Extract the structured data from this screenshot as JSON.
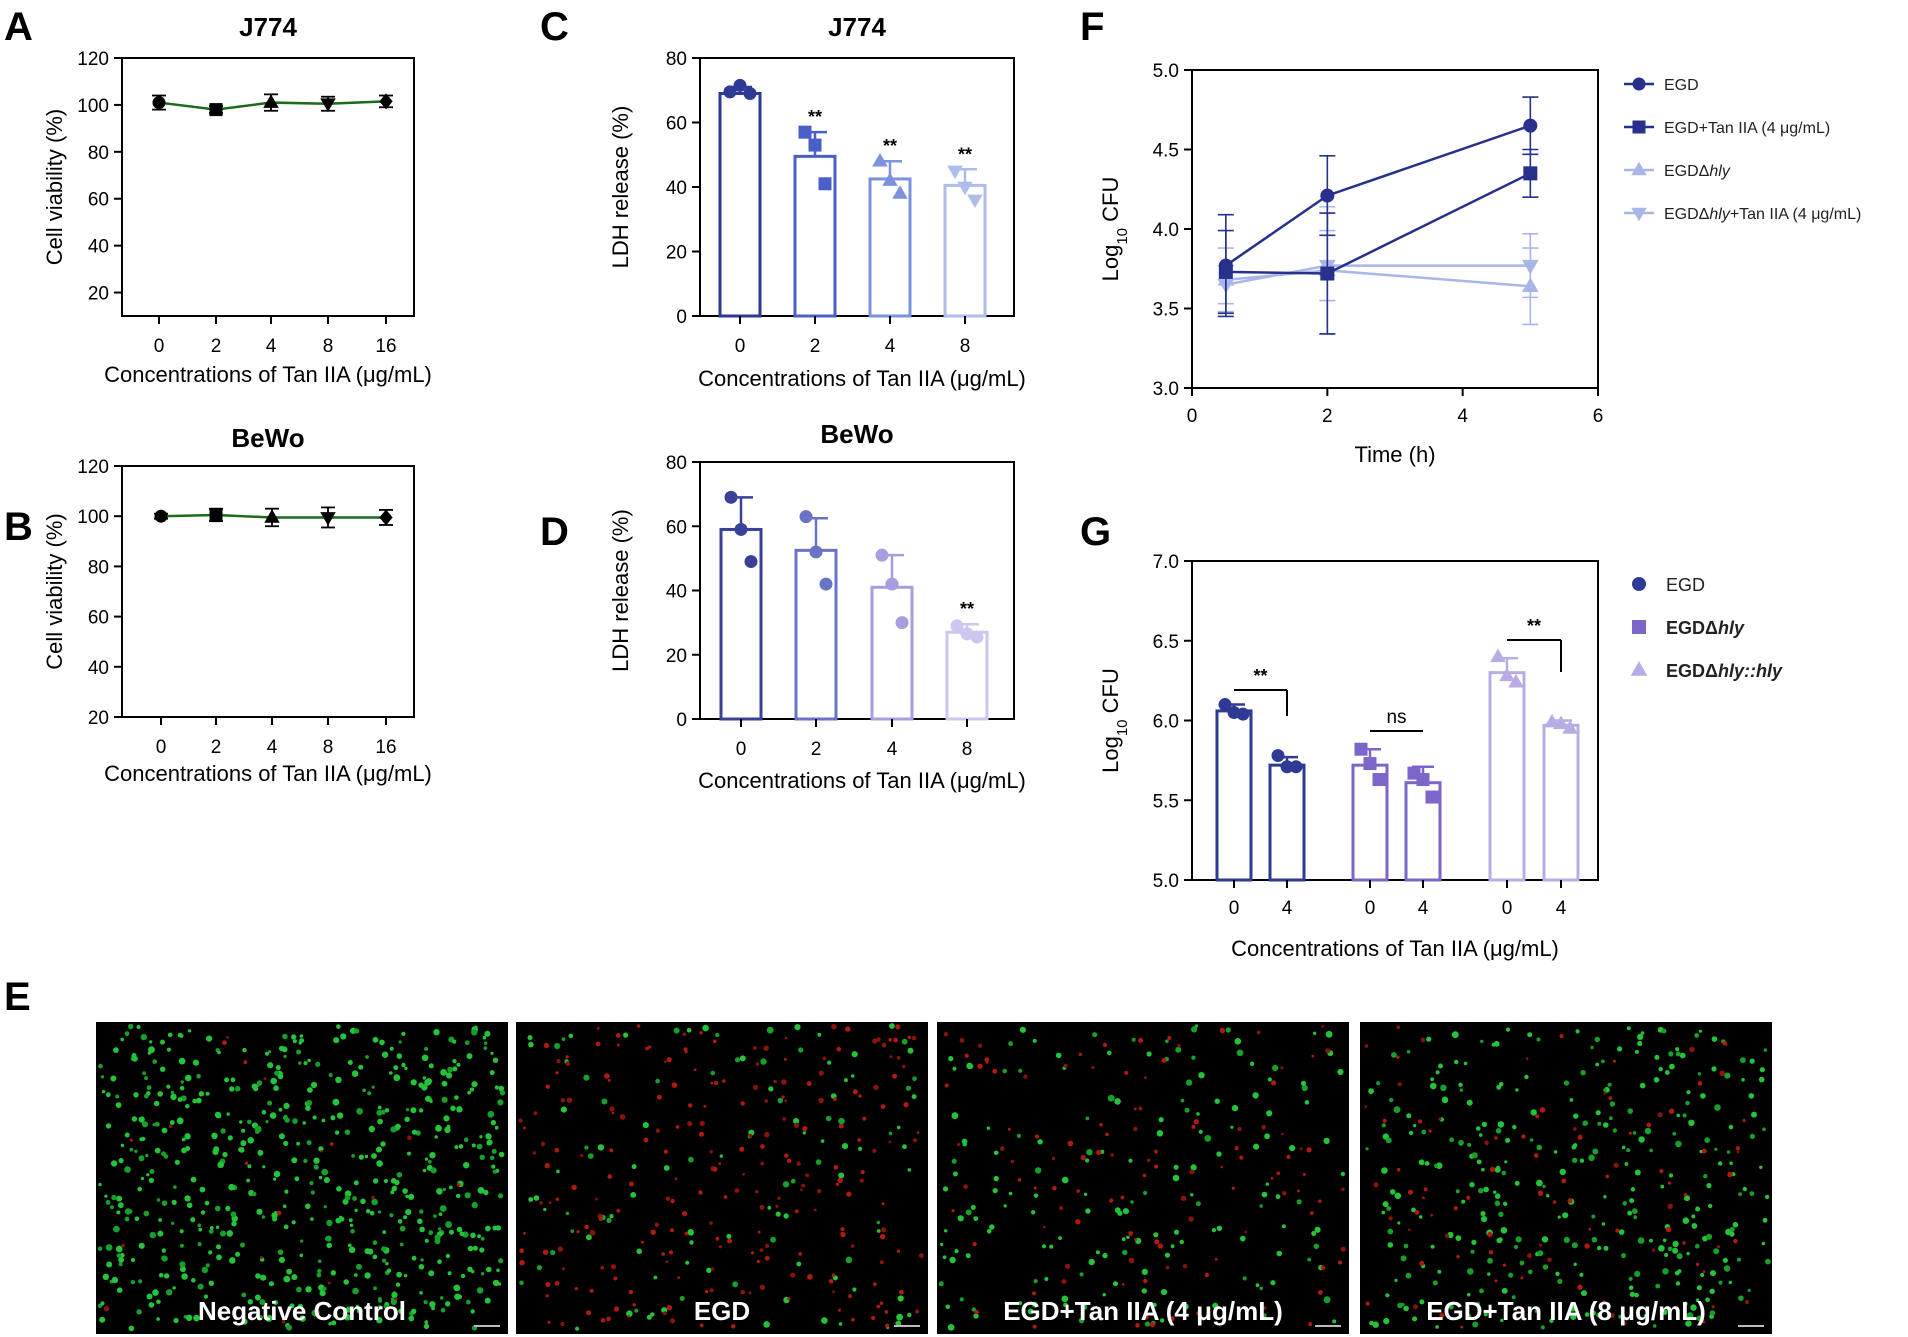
{
  "panel_letters": [
    "A",
    "B",
    "C",
    "D",
    "E",
    "F",
    "G"
  ],
  "chart_data": [
    {
      "id": "A",
      "type": "line",
      "title": "J774",
      "xlabel": "Concentrations of Tan IIA (μg/mL)",
      "ylabel": "Cell viability (%)",
      "categories": [
        "0",
        "2",
        "4",
        "8",
        "16"
      ],
      "values": [
        101,
        98,
        101,
        100.5,
        101.5
      ],
      "errors": [
        3,
        1.5,
        3.5,
        3,
        2.5
      ],
      "markers": [
        "circle",
        "square",
        "triangle-up",
        "triangle-down",
        "diamond"
      ],
      "ylim": [
        10,
        120
      ],
      "yticks": [
        20,
        40,
        60,
        80,
        100,
        120
      ],
      "line_color": "#1a6b1a"
    },
    {
      "id": "B",
      "type": "line",
      "title": "BeWo",
      "xlabel": "Concentrations of Tan IIA (μg/mL)",
      "ylabel": "Cell viability (%)",
      "categories": [
        "0",
        "2",
        "4",
        "8",
        "16"
      ],
      "values": [
        100,
        100.5,
        99.5,
        99.5,
        99.5
      ],
      "errors": [
        1,
        2.5,
        3.5,
        4,
        3
      ],
      "markers": [
        "circle",
        "square",
        "triangle-up",
        "triangle-down",
        "diamond"
      ],
      "ylim": [
        20,
        120
      ],
      "yticks": [
        20,
        40,
        60,
        80,
        100,
        120
      ],
      "line_color": "#1a6b1a"
    },
    {
      "id": "C",
      "type": "bar",
      "title": "J774",
      "xlabel": "Concentrations of Tan IIA (μg/mL)",
      "ylabel": "LDH release (%)",
      "categories": [
        "0",
        "2",
        "4",
        "8"
      ],
      "values": [
        69,
        49.5,
        42.5,
        40.5
      ],
      "errors": [
        2,
        7.5,
        5.5,
        5
      ],
      "points": [
        [
          69.5,
          71.5,
          69
        ],
        [
          57,
          53,
          41
        ],
        [
          48,
          42,
          38
        ],
        [
          45,
          40,
          36
        ]
      ],
      "significance": [
        "",
        "**",
        "**",
        "**"
      ],
      "colors": [
        "#2e3a94",
        "#4a5fc7",
        "#7d92dd",
        "#aebde9"
      ],
      "ylim": [
        0,
        80
      ],
      "yticks": [
        0,
        20,
        40,
        60,
        80
      ]
    },
    {
      "id": "D",
      "type": "bar",
      "title": "BeWo",
      "xlabel": "Concentrations of Tan IIA (μg/mL)",
      "ylabel": "LDH release (%)",
      "categories": [
        "0",
        "2",
        "4",
        "8"
      ],
      "values": [
        59,
        52.5,
        41,
        27
      ],
      "errors": [
        10,
        10,
        10,
        2.5
      ],
      "points": [
        [
          69,
          59,
          49
        ],
        [
          63,
          52,
          42
        ],
        [
          51,
          42,
          30
        ],
        [
          29,
          26.5,
          25.5
        ]
      ],
      "significance": [
        "",
        "",
        "",
        "**"
      ],
      "colors": [
        "#3a4199",
        "#6b73c6",
        "#a59fdf",
        "#ccc7ef"
      ],
      "ylim": [
        0,
        80
      ],
      "yticks": [
        0,
        20,
        40,
        60,
        80
      ]
    },
    {
      "id": "F",
      "type": "line",
      "xlabel": "Time (h)",
      "ylabel": "Log10 CFU",
      "xlim": [
        0,
        6
      ],
      "ylim": [
        3.0,
        5.0
      ],
      "xticks": [
        0,
        2,
        4,
        6
      ],
      "yticks": [
        3.0,
        3.5,
        4.0,
        4.5,
        5.0
      ],
      "x": [
        0.5,
        2,
        5
      ],
      "series": [
        {
          "name": "EGD",
          "values": [
            3.77,
            4.21,
            4.65
          ],
          "errors": [
            0.32,
            0.25,
            0.18
          ],
          "marker": "circle",
          "color": "#27318c"
        },
        {
          "name": "EGD+Tan IIA (4 μg/mL)",
          "values": [
            3.73,
            3.72,
            4.35
          ],
          "errors": [
            0.26,
            0.38,
            0.15
          ],
          "marker": "square",
          "color": "#27318c"
        },
        {
          "name": "EGDΔhly",
          "values": [
            3.68,
            3.74,
            3.64
          ],
          "errors": [
            0.2,
            0.4,
            0.24
          ],
          "marker": "triangle-up",
          "color": "#a8b6e8"
        },
        {
          "name": "EGDΔhly+Tan IIA (4 μg/mL)",
          "values": [
            3.65,
            3.77,
            3.77
          ],
          "errors": [
            0.12,
            0.22,
            0.2
          ],
          "marker": "triangle-down",
          "color": "#a8b6e8"
        }
      ]
    },
    {
      "id": "G",
      "type": "bar",
      "xlabel": "Concentrations of Tan IIA (μg/mL)",
      "ylabel": "Log10 CFU",
      "ylim": [
        5.0,
        7.0
      ],
      "yticks": [
        5.0,
        5.5,
        6.0,
        6.5,
        7.0
      ],
      "categories": [
        "0",
        "4",
        "0",
        "4",
        "0",
        "4"
      ],
      "groups": [
        {
          "name": "EGD",
          "marker": "circle",
          "color": "#2e3a94",
          "values": [
            6.06,
            5.72
          ],
          "points": [
            [
              6.1,
              6.05,
              6.04
            ],
            [
              5.78,
              5.71,
              5.71
            ]
          ],
          "errors": [
            0.04,
            0.05
          ]
        },
        {
          "name": "EGDΔhly",
          "marker": "square",
          "color": "#7d66c9",
          "values": [
            5.72,
            5.61
          ],
          "points": [
            [
              5.82,
              5.73,
              5.63
            ],
            [
              5.67,
              5.63,
              5.52
            ]
          ],
          "errors": [
            0.1,
            0.1
          ]
        },
        {
          "name": "EGDΔhly::hly",
          "marker": "triangle-up",
          "color": "#b8ace6",
          "values": [
            6.3,
            5.97
          ],
          "points": [
            [
              6.4,
              6.28,
              6.24
            ],
            [
              5.99,
              5.98,
              5.95
            ]
          ],
          "errors": [
            0.09,
            0.03
          ]
        }
      ],
      "significance": [
        "**",
        "ns",
        "**"
      ]
    }
  ],
  "legend_F": {
    "items": [
      {
        "pre": "EGD",
        "italic": "",
        "post": ""
      },
      {
        "pre": "EGD+Tan IIA (4 μg/mL)",
        "italic": "",
        "post": ""
      },
      {
        "pre": "EGDΔ",
        "italic": "hly",
        "post": ""
      },
      {
        "pre": "EGDΔ",
        "italic": "hly",
        "post": "+Tan IIA (4 μg/mL)"
      }
    ]
  },
  "legend_G": {
    "items": [
      {
        "pre": "EGD",
        "italic": "",
        "post": ""
      },
      {
        "pre": "EGDΔ",
        "italic": "hly",
        "post": ""
      },
      {
        "pre": "EGDΔ",
        "italic": "hly::hly",
        "post": ""
      }
    ]
  },
  "ylabel_log_prefix": "Log",
  "ylabel_log_sub": "10",
  "ylabel_log_suffix": " CFU",
  "microscopy": {
    "panels": [
      {
        "label": "Negative Control",
        "green": 620,
        "red": 20
      },
      {
        "label": "EGD",
        "green": 110,
        "red": 230
      },
      {
        "label": "EGD+Tan IIA (4 μg/mL)",
        "green": 170,
        "red": 110
      },
      {
        "label": "EGD+Tan IIA (8 μg/mL)",
        "green": 330,
        "red": 90
      }
    ]
  }
}
